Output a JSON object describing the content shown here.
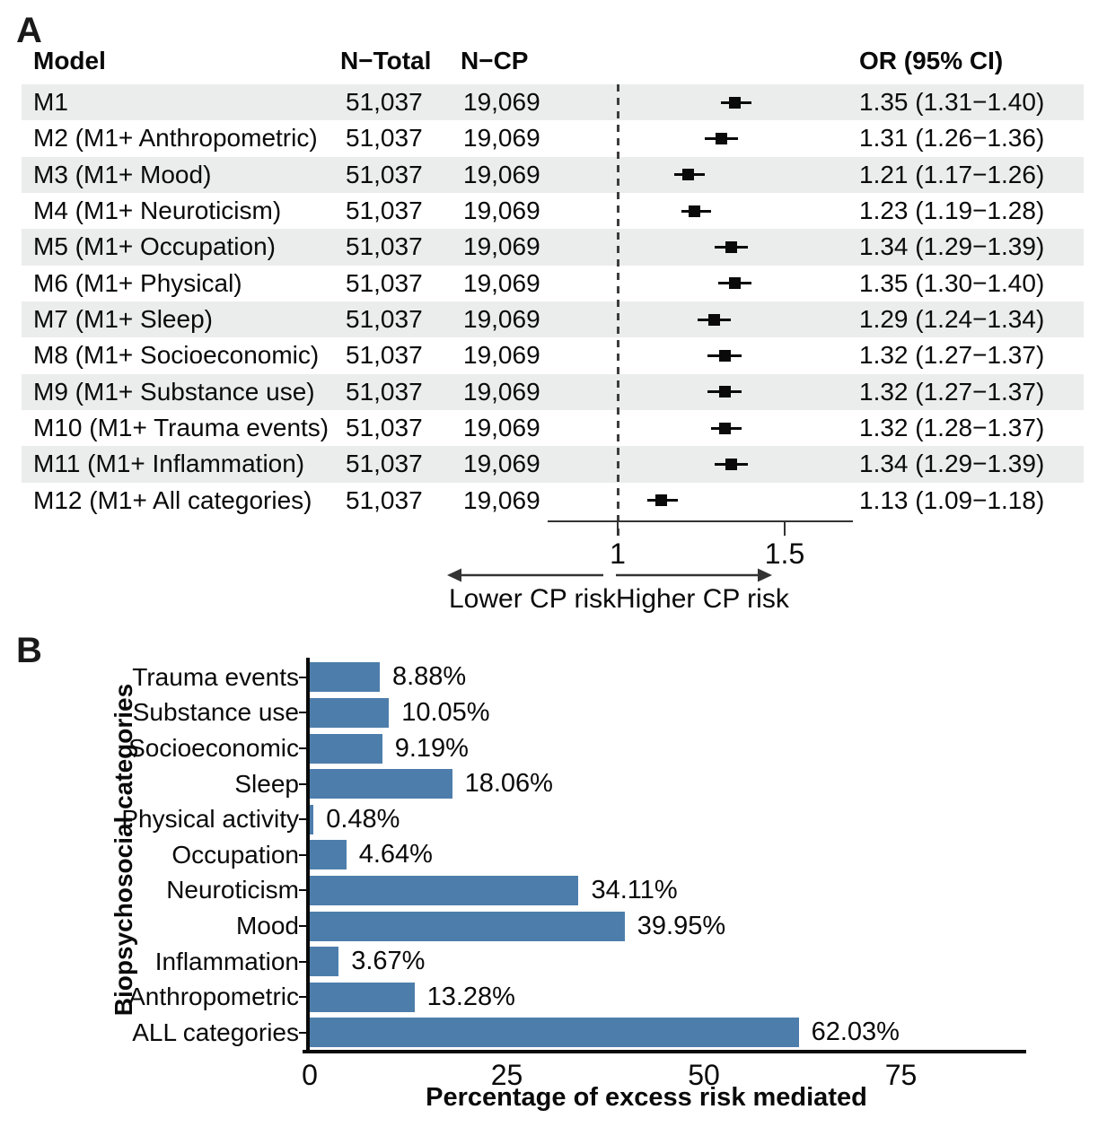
{
  "figure": {
    "panel_a_label": "A",
    "panel_b_label": "B"
  },
  "chart_data": [
    {
      "type": "forest",
      "panel": "A",
      "columns": {
        "model": "Model",
        "n_total": "N−Total",
        "n_cp": "N−CP",
        "or_ci": "OR (95% CI)"
      },
      "rows": [
        {
          "model": "M1",
          "n_total": "51,037",
          "n_cp": "19,069",
          "or": 1.35,
          "lo": 1.31,
          "hi": 1.4,
          "or_ci": "1.35 (1.31−1.40)"
        },
        {
          "model": "M2 (M1+ Anthropometric)",
          "n_total": "51,037",
          "n_cp": "19,069",
          "or": 1.31,
          "lo": 1.26,
          "hi": 1.36,
          "or_ci": "1.31 (1.26−1.36)"
        },
        {
          "model": "M3 (M1+ Mood)",
          "n_total": "51,037",
          "n_cp": "19,069",
          "or": 1.21,
          "lo": 1.17,
          "hi": 1.26,
          "or_ci": "1.21 (1.17−1.26)"
        },
        {
          "model": "M4 (M1+ Neuroticism)",
          "n_total": "51,037",
          "n_cp": "19,069",
          "or": 1.23,
          "lo": 1.19,
          "hi": 1.28,
          "or_ci": "1.23 (1.19−1.28)"
        },
        {
          "model": "M5 (M1+ Occupation)",
          "n_total": "51,037",
          "n_cp": "19,069",
          "or": 1.34,
          "lo": 1.29,
          "hi": 1.39,
          "or_ci": "1.34 (1.29−1.39)"
        },
        {
          "model": "M6 (M1+ Physical)",
          "n_total": "51,037",
          "n_cp": "19,069",
          "or": 1.35,
          "lo": 1.3,
          "hi": 1.4,
          "or_ci": "1.35 (1.30−1.40)"
        },
        {
          "model": "M7 (M1+ Sleep)",
          "n_total": "51,037",
          "n_cp": "19,069",
          "or": 1.29,
          "lo": 1.24,
          "hi": 1.34,
          "or_ci": "1.29 (1.24−1.34)"
        },
        {
          "model": "M8 (M1+ Socioeconomic)",
          "n_total": "51,037",
          "n_cp": "19,069",
          "or": 1.32,
          "lo": 1.27,
          "hi": 1.37,
          "or_ci": "1.32 (1.27−1.37)"
        },
        {
          "model": "M9 (M1+ Substance use)",
          "n_total": "51,037",
          "n_cp": "19,069",
          "or": 1.32,
          "lo": 1.27,
          "hi": 1.37,
          "or_ci": "1.32 (1.27−1.37)"
        },
        {
          "model": "M10 (M1+ Trauma events)",
          "n_total": "51,037",
          "n_cp": "19,069",
          "or": 1.32,
          "lo": 1.28,
          "hi": 1.37,
          "or_ci": "1.32 (1.28−1.37)"
        },
        {
          "model": "M11 (M1+ Inflammation)",
          "n_total": "51,037",
          "n_cp": "19,069",
          "or": 1.34,
          "lo": 1.29,
          "hi": 1.39,
          "or_ci": "1.34 (1.29−1.39)"
        },
        {
          "model": "M12 (M1+ All categories)",
          "n_total": "51,037",
          "n_cp": "19,069",
          "or": 1.13,
          "lo": 1.09,
          "hi": 1.18,
          "or_ci": "1.13 (1.09−1.18)"
        }
      ],
      "axis_ticks": [
        {
          "v": 1,
          "t": "1"
        },
        {
          "v": 1.5,
          "t": "1.5"
        }
      ],
      "ref_line": 1,
      "x_range_px_note": "axis drawn from OR 0.79 to 1.70",
      "direction_labels": {
        "lower": "Lower CP risk",
        "higher": "Higher CP risk"
      },
      "stripe_color": "#ebecec",
      "marker_color": "#0a0a0a"
    },
    {
      "type": "bar",
      "panel": "B",
      "orientation": "horizontal",
      "categories": [
        "Trauma events",
        "Substance use",
        "Socioeconomic",
        "Sleep",
        "Physical activity",
        "Occupation",
        "Neuroticism",
        "Mood",
        "Inflammation",
        "Anthropometric",
        "ALL categories"
      ],
      "values": [
        8.88,
        10.05,
        9.19,
        18.06,
        0.48,
        4.64,
        34.11,
        39.95,
        3.67,
        13.28,
        62.03
      ],
      "labels": [
        "8.88%",
        "10.05%",
        "9.19%",
        "18.06%",
        "0.48%",
        "4.64%",
        "34.11%",
        "39.95%",
        "3.67%",
        "13.28%",
        "62.03%"
      ],
      "xlabel": "Percentage of excess risk mediated",
      "ylabel": "Biopsychosocial categories",
      "xticks": [
        {
          "v": 0,
          "t": "0"
        },
        {
          "v": 25,
          "t": "25"
        },
        {
          "v": 50,
          "t": "50"
        },
        {
          "v": 75,
          "t": "75"
        }
      ],
      "xlim": [
        0,
        91
      ],
      "bar_color": "#4d7eab",
      "grid": false,
      "legend": "none"
    }
  ]
}
